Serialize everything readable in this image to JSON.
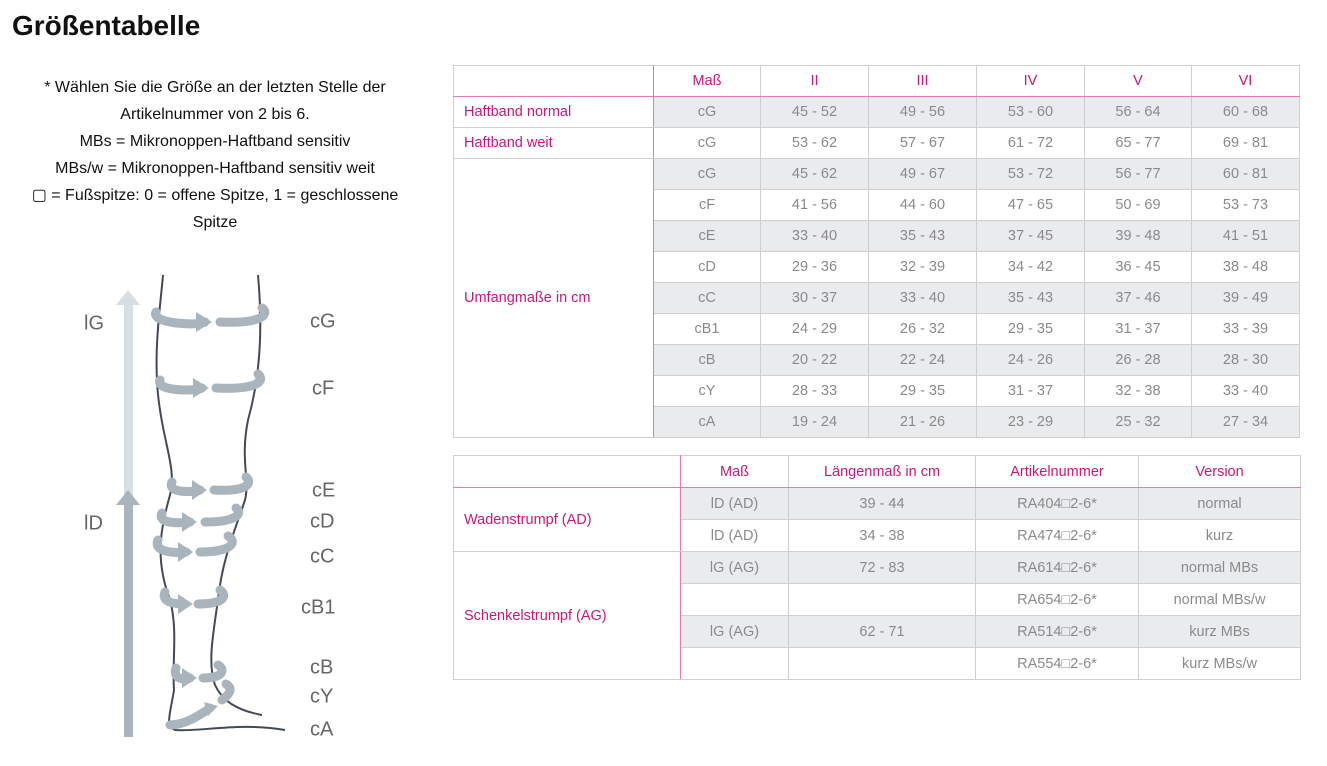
{
  "header": {
    "title": "Größentabelle"
  },
  "notes": [
    "* Wählen Sie die Größe an der letzten Stelle der",
    "Artikelnummer von 2 bis 6.",
    "MBs = Mikronoppen-Haftband sensitiv",
    "MBs/w = Mikronoppen-Haftband sensitiv weit",
    "▢ = Fußspitze: 0 = offene Spitze, 1 = geschlossene",
    "Spitze"
  ],
  "diagram": {
    "lengths": [
      "lG",
      "lD"
    ],
    "circumferences": [
      "cG",
      "cF",
      "cE",
      "cD",
      "cC",
      "cB1",
      "cB",
      "cY",
      "cA"
    ]
  },
  "table1": {
    "header": [
      "Maß",
      "II",
      "III",
      "IV",
      "V",
      "VI"
    ],
    "groups": [
      {
        "label": "Haftband normal",
        "rows": [
          [
            "cG",
            "45 - 52",
            "49 - 56",
            "53 - 60",
            "56 - 64",
            "60 - 68"
          ]
        ]
      },
      {
        "label": "Haftband weit",
        "rows": [
          [
            "cG",
            "53 - 62",
            "57 - 67",
            "61 - 72",
            "65 - 77",
            "69 - 81"
          ]
        ]
      },
      {
        "label": "Umfangmaße in cm",
        "rows": [
          [
            "cG",
            "45 - 62",
            "49 - 67",
            "53 - 72",
            "56 - 77",
            "60 - 81"
          ],
          [
            "cF",
            "41 - 56",
            "44 - 60",
            "47 - 65",
            "50 - 69",
            "53 - 73"
          ],
          [
            "cE",
            "33 - 40",
            "35 - 43",
            "37 - 45",
            "39 - 48",
            "41 - 51"
          ],
          [
            "cD",
            "29 - 36",
            "32 - 39",
            "34 - 42",
            "36 - 45",
            "38 - 48"
          ],
          [
            "cC",
            "30 - 37",
            "33 - 40",
            "35 - 43",
            "37 - 46",
            "39 - 49"
          ],
          [
            "cB1",
            "24 - 29",
            "26 - 32",
            "29 - 35",
            "31 - 37",
            "33 - 39"
          ],
          [
            "cB",
            "20 - 22",
            "22 - 24",
            "24 - 26",
            "26 - 28",
            "28 - 30"
          ],
          [
            "cY",
            "28 - 33",
            "29 - 35",
            "31 - 37",
            "32 - 38",
            "33 - 40"
          ],
          [
            "cA",
            "19 - 24",
            "21 - 26",
            "23 - 29",
            "25 - 32",
            "27 - 34"
          ]
        ]
      }
    ]
  },
  "table2": {
    "header": [
      "Maß",
      "Längenmaß in cm",
      "Artikelnummer",
      "Version"
    ],
    "groups": [
      {
        "label": "Wadenstrumpf (AD)",
        "rows": [
          [
            "lD (AD)",
            "39 - 44",
            "RA404□2-6*",
            "normal"
          ],
          [
            "lD (AD)",
            "34 - 38",
            "RA474□2-6*",
            "kurz"
          ]
        ]
      },
      {
        "label": "Schenkelstrumpf (AG)",
        "rows": [
          [
            "lG (AG)",
            "72 - 83",
            "RA614□2-6*",
            "normal MBs"
          ],
          [
            null,
            null,
            "RA654□2-6*",
            "normal MBs/w"
          ],
          [
            "lG (AG)",
            "62 - 71",
            "RA514□2-6*",
            "kurz MBs"
          ],
          [
            null,
            null,
            "RA554□2-6*",
            "kurz MBs/w"
          ]
        ]
      }
    ]
  }
}
